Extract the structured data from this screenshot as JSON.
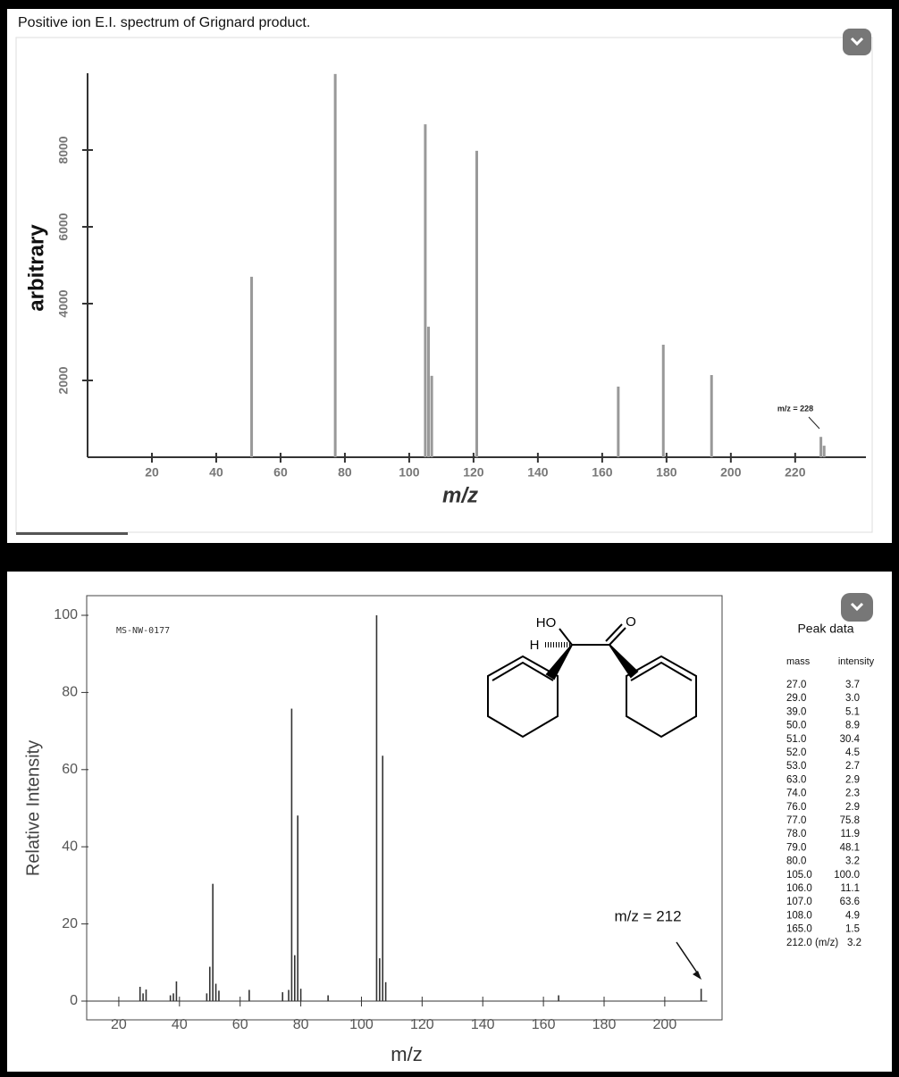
{
  "title": "Positive ion E.I. spectrum of Grignard product.",
  "chart_data": [
    {
      "type": "bar",
      "y_label": "arbitrary",
      "x_label": "m/z",
      "x": [
        51,
        77,
        105,
        106,
        107,
        121,
        165,
        179,
        194,
        228,
        229
      ],
      "values": [
        4700,
        9980,
        8670,
        3400,
        2120,
        7980,
        1840,
        2930,
        2140,
        530,
        300
      ],
      "color": "#999999",
      "xlim": [
        0,
        242
      ],
      "ylim": [
        0,
        10000
      ],
      "xticks": [
        20,
        40,
        60,
        80,
        100,
        120,
        140,
        160,
        180,
        200,
        220
      ],
      "yticks": [
        2000,
        4000,
        6000,
        8000
      ],
      "annotation": "m/z = 228"
    },
    {
      "type": "bar",
      "y_label": "Relative Intensity",
      "x_label": "m/z",
      "x": [
        27,
        28,
        29,
        37,
        38,
        39,
        49,
        50,
        51,
        52,
        53,
        63,
        74,
        76,
        77,
        78,
        79,
        80,
        89,
        105,
        106,
        107,
        108,
        165,
        212
      ],
      "values": [
        3.7,
        2.0,
        3.0,
        1.5,
        2.0,
        5.1,
        2.0,
        8.9,
        30.4,
        4.5,
        2.7,
        2.9,
        2.3,
        2.9,
        75.8,
        11.9,
        48.1,
        3.2,
        1.5,
        100.0,
        11.1,
        63.6,
        4.9,
        1.5,
        3.2
      ],
      "color": "#333333",
      "xlim": [
        10,
        214
      ],
      "ylim": [
        -5,
        105
      ],
      "xticks": [
        20,
        40,
        60,
        80,
        100,
        120,
        140,
        160,
        180,
        200
      ],
      "yticks": [
        0,
        20,
        40,
        60,
        80,
        100
      ],
      "annotation": "MS-NW-0177",
      "arrow_label": "m/z = 212"
    }
  ],
  "peak_data": {
    "title": "Peak data",
    "headers": [
      "mass",
      "intensity"
    ],
    "rows": [
      [
        "27.0",
        "3.7"
      ],
      [
        "29.0",
        "3.0"
      ],
      [
        "39.0",
        "5.1"
      ],
      [
        "50.0",
        "8.9"
      ],
      [
        "51.0",
        "30.4"
      ],
      [
        "52.0",
        "4.5"
      ],
      [
        "53.0",
        "2.7"
      ],
      [
        "63.0",
        "2.9"
      ],
      [
        "74.0",
        "2.3"
      ],
      [
        "76.0",
        "2.9"
      ],
      [
        "77.0",
        "75.8"
      ],
      [
        "78.0",
        "11.9"
      ],
      [
        "79.0",
        "48.1"
      ],
      [
        "80.0",
        "3.2"
      ],
      [
        "105.0",
        "100.0"
      ],
      [
        "106.0",
        "11.1"
      ],
      [
        "107.0",
        "63.6"
      ],
      [
        "108.0",
        "4.9"
      ],
      [
        "165.0",
        "1.5"
      ],
      [
        "212.0 (m/z)",
        "3.2"
      ]
    ]
  },
  "structure": {
    "labels": [
      "HO",
      "H",
      "O"
    ]
  }
}
